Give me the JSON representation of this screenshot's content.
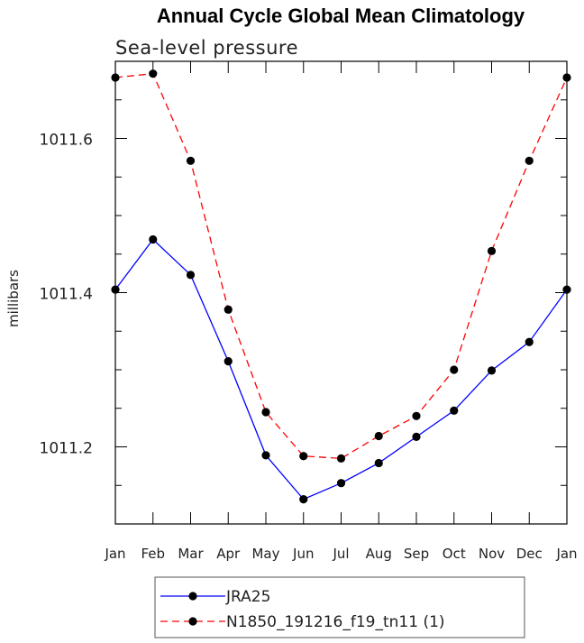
{
  "chart_data": {
    "type": "line",
    "title": "Annual Cycle Global Mean Climatology",
    "subtitle": "Sea-level pressure",
    "xlabel": "",
    "ylabel": "millibars",
    "categories": [
      "Jan",
      "Feb",
      "Mar",
      "Apr",
      "May",
      "Jun",
      "Jul",
      "Aug",
      "Sep",
      "Oct",
      "Nov",
      "Dec",
      "Jan"
    ],
    "ylim": [
      1011.1,
      1011.7
    ],
    "yticks_major": [
      1011.2,
      1011.4,
      1011.6
    ],
    "ytick_labels": [
      "1011.2",
      "1011.4",
      "1011.6"
    ],
    "yticks_minor_step": 0.05,
    "grid": false,
    "legend_position": "bottom",
    "series": [
      {
        "name": "JRA25",
        "color": "#0000ff",
        "dash": "solid",
        "values": [
          1011.404,
          1011.469,
          1011.423,
          1011.311,
          1011.189,
          1011.132,
          1011.153,
          1011.179,
          1011.213,
          1011.247,
          1011.299,
          1011.336,
          1011.404
        ]
      },
      {
        "name": "N1850_191216_f19_tn11 (1)",
        "color": "#ff0000",
        "dash": "dashed",
        "values": [
          1011.679,
          1011.684,
          1011.571,
          1011.378,
          1011.245,
          1011.188,
          1011.185,
          1011.214,
          1011.24,
          1011.3,
          1011.454,
          1011.571,
          1011.679
        ]
      }
    ]
  }
}
